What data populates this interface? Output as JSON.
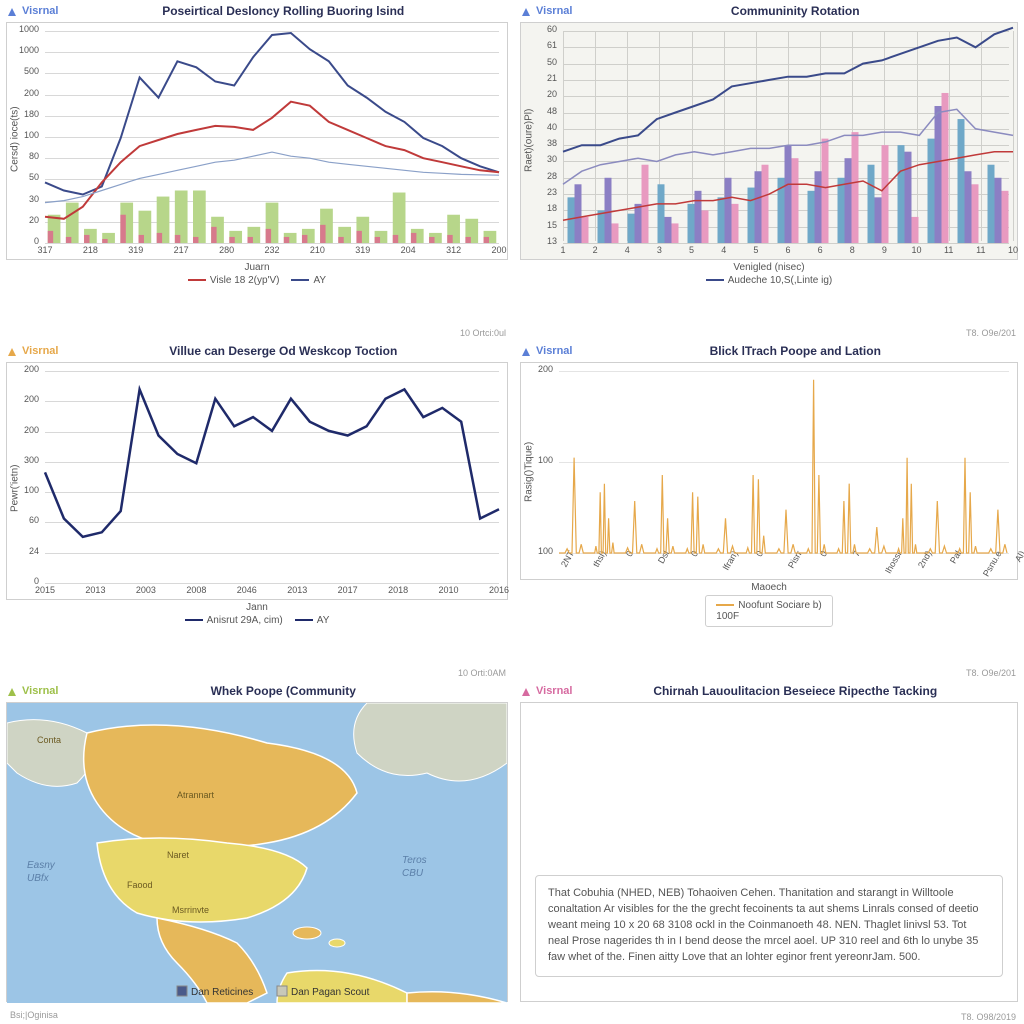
{
  "brand_label": "Visrnal",
  "panels": {
    "p1": {
      "title": "Poseirtical Desloncy Rolling Buoring lsind",
      "ylabel": "Cersd) ioce(ts)",
      "xlabel": "Juarn",
      "legend": [
        {
          "label": "Visle 18 2(yp'V)",
          "color": "#c03a3a"
        },
        {
          "label": "AY",
          "color": "#3a4a8a"
        }
      ],
      "footer": "10 Ortci:0ul",
      "background_color": "#ffffff",
      "grid_color": "#d8d8d8",
      "xticks": [
        "317",
        "218",
        "319",
        "217",
        "280",
        "232",
        "210",
        "319",
        "204",
        "312",
        "200"
      ],
      "yticks": [
        "0",
        "20",
        "30",
        "50",
        "80",
        "100",
        "180",
        "200",
        "500",
        "1000",
        "1000"
      ],
      "ylim": 1050,
      "lines": [
        {
          "color": "#3a4a8a",
          "width": 2,
          "y": [
            300,
            260,
            240,
            280,
            520,
            820,
            720,
            900,
            870,
            800,
            780,
            920,
            1030,
            1040,
            960,
            900,
            780,
            720,
            650,
            600,
            520,
            480,
            420,
            380,
            350
          ]
        },
        {
          "color": "#c03a3a",
          "width": 2,
          "y": [
            130,
            120,
            180,
            300,
            400,
            480,
            510,
            540,
            560,
            580,
            575,
            560,
            620,
            700,
            680,
            600,
            560,
            520,
            480,
            460,
            420,
            400,
            380,
            360,
            350
          ]
        },
        {
          "color": "#8aa0c8",
          "width": 1.2,
          "y": [
            200,
            210,
            230,
            260,
            290,
            320,
            340,
            360,
            380,
            400,
            410,
            430,
            450,
            430,
            420,
            400,
            390,
            380,
            370,
            360,
            350,
            345,
            340,
            338,
            336
          ]
        }
      ],
      "bars": {
        "color": "#b7d68a",
        "group_w": 0.7,
        "values": [
          140,
          200,
          70,
          50,
          200,
          160,
          230,
          260,
          260,
          130,
          60,
          80,
          200,
          50,
          70,
          170,
          80,
          130,
          60,
          250,
          70,
          50,
          140,
          120,
          60
        ]
      },
      "bars2": {
        "color": "#d77a8c",
        "group_w": 0.3,
        "values": [
          60,
          30,
          40,
          20,
          140,
          40,
          50,
          40,
          30,
          80,
          30,
          30,
          70,
          30,
          40,
          90,
          30,
          60,
          30,
          40,
          50,
          30,
          40,
          30,
          30
        ]
      }
    },
    "p2": {
      "title": "Communinity Rotation",
      "ylabel": "Raet)(oure)Pl)",
      "xlabel": "Venigled (nisec)",
      "legend": [
        {
          "label": "Audeche 10,S(,Linte ig)",
          "color": "#3a4a8a"
        }
      ],
      "footer": "T8. O9e/201",
      "background_color": "#f4f4f0",
      "grid_color": "#cfcfcb",
      "xticks": [
        "1",
        "2",
        "4",
        "3",
        "5",
        "4",
        "5",
        "6",
        "6",
        "8",
        "9",
        "10",
        "11",
        "11",
        "10"
      ],
      "yticks": [
        "13",
        "15",
        "18",
        "23",
        "28",
        "30",
        "38",
        "40",
        "48",
        "20",
        "21",
        "50",
        "61",
        "60"
      ],
      "ylim": 65,
      "lines": [
        {
          "color": "#3a4a8a",
          "width": 2,
          "y": [
            28,
            30,
            30,
            32,
            33,
            38,
            40,
            42,
            44,
            48,
            49,
            50,
            51,
            51,
            52,
            52,
            55,
            56,
            58,
            60,
            62,
            63,
            60,
            64,
            66
          ]
        },
        {
          "color": "#8b8bbf",
          "width": 1.5,
          "y": [
            18,
            22,
            24,
            25,
            26,
            25,
            27,
            28,
            27,
            28,
            29,
            29,
            30,
            30,
            31,
            33,
            33,
            34,
            34,
            33,
            40,
            41,
            35,
            34,
            33
          ]
        },
        {
          "color": "#c03a3a",
          "width": 1.5,
          "y": [
            7,
            8,
            9,
            10,
            11,
            12,
            12,
            13,
            13,
            14,
            13,
            15,
            18,
            18,
            17,
            18,
            19,
            16,
            22,
            24,
            25,
            26,
            27,
            28,
            28
          ]
        }
      ],
      "bar_groups": {
        "n": 15,
        "h": 40,
        "series": [
          {
            "color": "#6fa8c8",
            "v": [
              14,
              10,
              9,
              18,
              12,
              14,
              17,
              20,
              16,
              20,
              24,
              30,
              32,
              38,
              24
            ]
          },
          {
            "color": "#8b7fc4",
            "v": [
              18,
              20,
              12,
              8,
              16,
              20,
              22,
              30,
              22,
              26,
              14,
              28,
              42,
              22,
              20
            ]
          },
          {
            "color": "#e89ac0",
            "v": [
              8,
              6,
              24,
              6,
              10,
              12,
              24,
              26,
              32,
              34,
              30,
              8,
              46,
              18,
              16
            ]
          }
        ]
      }
    },
    "p3": {
      "title": "Villue can Deserge Od Weskcop Toction",
      "brand_color": "#e6a84a",
      "ylabel": "Pewr('ietn)",
      "xlabel": "Jann",
      "legend": [
        {
          "label": "Anisrut 29A, cim)",
          "color": "#1f2a6a"
        },
        {
          "label": "AY",
          "color": "#1f2a6a"
        }
      ],
      "footer": "10 Orti:0AM",
      "background_color": "#ffffff",
      "grid_color": "#d8d8d8",
      "xticks": [
        "2015",
        "2013",
        "2003",
        "2008",
        "2046",
        "2013",
        "2017",
        "2018",
        "2010",
        "2016"
      ],
      "yticks": [
        "0",
        "24",
        "60",
        "100",
        "300",
        "200",
        "200",
        "200"
      ],
      "ylim": 230,
      "lines": [
        {
          "color": "#1f2a6a",
          "width": 2.5,
          "y": [
            120,
            70,
            50,
            55,
            78,
            210,
            160,
            140,
            130,
            200,
            170,
            180,
            165,
            200,
            175,
            165,
            160,
            170,
            200,
            210,
            180,
            190,
            175,
            70,
            80
          ]
        }
      ]
    },
    "p4": {
      "title": "Blick lTrach Poope and Lation",
      "brand_color": "#5b7fd6",
      "ylabel": "Rasig()Tique)",
      "xlabel": "Maoech",
      "legend_box": {
        "items": [
          "Noofunt Sociare b)",
          "100F"
        ],
        "color": "#e6a84a"
      },
      "footer": "T8. O9e/201",
      "background_color": "#ffffff",
      "grid_color": "#e4e4e4",
      "xticks": [
        "2NT",
        "thsl)",
        "0",
        "Dsl",
        "0",
        "lfran)",
        "0",
        "Pisrr",
        "0",
        "7",
        "Ihossr",
        "2nd)",
        "Pal",
        "Psnu.e",
        "Al)"
      ],
      "yticks": [
        "100",
        "100",
        "200"
      ],
      "ylim": 210,
      "spikes": {
        "color": "#e6a84a",
        "width": 1.2,
        "groups": [
          [
            5,
            110,
            10
          ],
          [
            8,
            70,
            80,
            40,
            12
          ],
          [
            6,
            60,
            10
          ],
          [
            5,
            90,
            40,
            8
          ],
          [
            5,
            70,
            65,
            10
          ],
          [
            5,
            40,
            8
          ],
          [
            6,
            90,
            85,
            20
          ],
          [
            5,
            50,
            10
          ],
          [
            5,
            200,
            90,
            10
          ],
          [
            5,
            60,
            80,
            10
          ],
          [
            5,
            30,
            8
          ],
          [
            5,
            40,
            110,
            80,
            10
          ],
          [
            5,
            60,
            8
          ],
          [
            5,
            110,
            70,
            8
          ],
          [
            5,
            50,
            10
          ]
        ]
      }
    },
    "p5": {
      "title": "Whek Poope (Community",
      "brand_color": "#9ec04a",
      "legend": [
        {
          "label": "Dan Reticines",
          "box": "#4a5a8a"
        },
        {
          "label": "Dan Pagan Scout",
          "box": "#c8c8b8"
        }
      ],
      "water": "#9cc5e6",
      "land_main": "#e6b85a",
      "land_alt": "#e8d86a",
      "land_grey": "#cfd4c4",
      "footer_left": "Bsi;|Oginisa",
      "labels": {
        "Conta": "Conta",
        "Atrannart": "Atrannart",
        "Naret": "Naret",
        "Easny": "Easny",
        "UBfx": "UBfx",
        "Faood": "Faood",
        "Msrrinvte": "Msrrinvte",
        "Teros": "Teros",
        "CBU": "CBU"
      }
    },
    "p6": {
      "title": "Chirnah Lauoulitacion Beseiece Ripecthe Tacking",
      "brand_color": "#d66aa0",
      "footer": "T8. O98/2019",
      "text": "That Cobuhia (NHED, NEB) Tohaoiven Cehen. Thanitation and starangt in Willtoole conaltation Ar visibles for the the grecht fecoinents ta aut shems Linrals consed of deetio weant meing 10 x 20 68 3108 ockl in the Coinmanoeth 48. NEN. Thaglet linivsl 53. Tot neal Prose nagerides th in I bend deose the mrcel aoel. UP 310 reel and 6th lo unybe 35 faw whet of the. Finen aitty Love that an lohter eginor frent yereonrJam. 500."
    }
  }
}
